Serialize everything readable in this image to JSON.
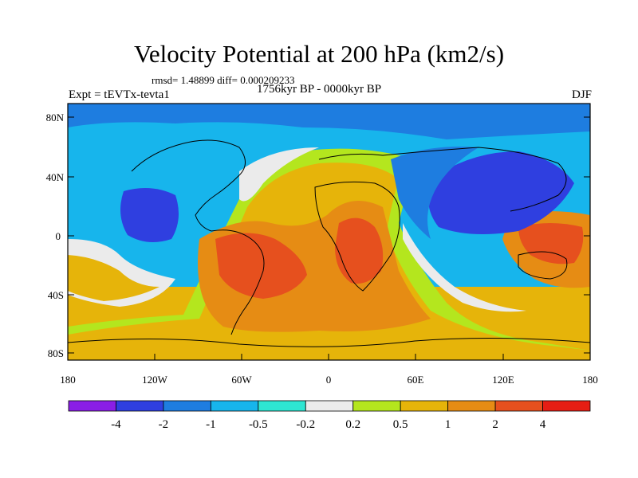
{
  "title": "Velocity Potential at 200 hPa (km2/s)",
  "stats": "rmsd= 1.48899 diff= 0.000209233",
  "experiment": "Expt = tEVTx-tevta1",
  "period": "1756kyr BP - 0000kyr BP",
  "season": "DJF",
  "lat_ticks": [
    "80N",
    "40N",
    "0",
    "40S",
    "80S"
  ],
  "lon_ticks": [
    "180",
    "120W",
    "60W",
    "0",
    "60E",
    "120E",
    "180"
  ],
  "legend": {
    "labels": [
      "-4",
      "-2",
      "-1",
      "-0.5",
      "-0.2",
      "0.2",
      "0.5",
      "1",
      "2",
      "4"
    ],
    "colors": [
      "#8a1ee6",
      "#2f3fe0",
      "#1e7de0",
      "#17b5ec",
      "#2ee6d2",
      "#ebebeb",
      "#b4e61e",
      "#e6b40a",
      "#e68c14",
      "#e6501e",
      "#e61e14"
    ]
  },
  "palette": {
    "ocean_fill": "#17b5ec",
    "outline": "#000000"
  }
}
